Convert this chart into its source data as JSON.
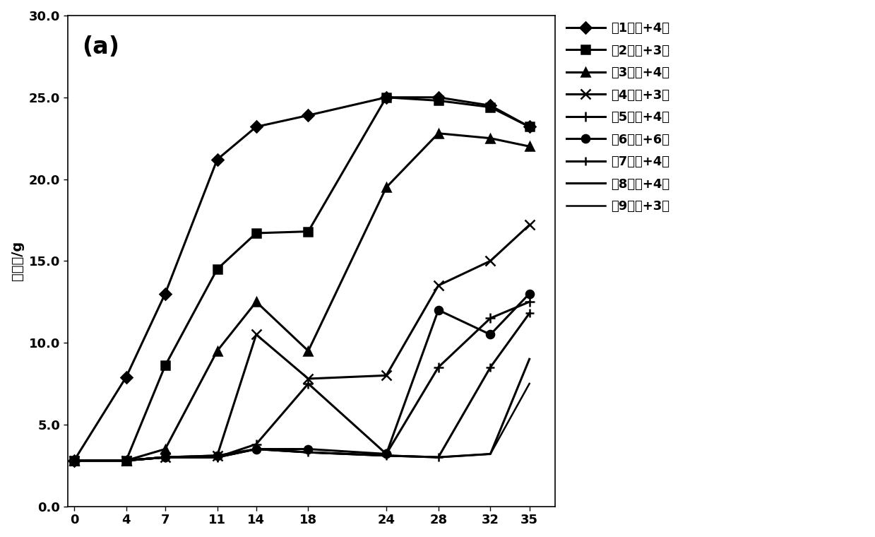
{
  "x": [
    0,
    4,
    7,
    11,
    14,
    18,
    24,
    28,
    32,
    35
  ],
  "series": [
    {
      "label": "第1批次+4天",
      "marker": "D",
      "markersize": 8,
      "linewidth": 2.2,
      "y": [
        2.8,
        7.9,
        13.0,
        21.2,
        23.2,
        23.9,
        25.0,
        25.0,
        24.5,
        23.2
      ]
    },
    {
      "label": "第2批次+3天",
      "marker": "s",
      "markersize": 9,
      "linewidth": 2.2,
      "y": [
        2.8,
        2.8,
        8.6,
        14.5,
        16.7,
        16.8,
        25.0,
        24.8,
        24.4,
        23.2
      ]
    },
    {
      "label": "第3批次+4天",
      "marker": "^",
      "markersize": 9,
      "linewidth": 2.2,
      "y": [
        2.8,
        2.8,
        3.5,
        9.5,
        12.5,
        9.5,
        19.5,
        22.8,
        22.5,
        22.0
      ]
    },
    {
      "label": "第4批次+3天",
      "marker": "x",
      "markersize": 10,
      "linewidth": 2.2,
      "y": [
        2.8,
        2.8,
        3.0,
        3.1,
        10.5,
        7.8,
        8.0,
        13.5,
        15.0,
        17.2
      ]
    },
    {
      "label": "第5批次+4天",
      "marker": "+",
      "markersize": 10,
      "linewidth": 2.2,
      "y": [
        2.8,
        2.8,
        3.0,
        3.0,
        3.8,
        7.5,
        3.2,
        8.5,
        11.5,
        12.5
      ]
    },
    {
      "label": "第6批次+6天",
      "marker": "o",
      "markersize": 8,
      "linewidth": 2.2,
      "y": [
        2.8,
        2.8,
        3.0,
        3.1,
        3.5,
        3.5,
        3.2,
        12.0,
        10.5,
        13.0
      ]
    },
    {
      "label": "第7批次+4天",
      "marker": "+",
      "markersize": 8,
      "linewidth": 2.2,
      "y": [
        2.8,
        2.8,
        3.0,
        3.0,
        3.5,
        3.3,
        3.1,
        3.0,
        8.5,
        11.8
      ]
    },
    {
      "label": "第8批次+4天",
      "marker": "None",
      "markersize": 0,
      "linewidth": 2.2,
      "y": [
        2.8,
        2.8,
        3.0,
        3.0,
        3.5,
        3.3,
        3.1,
        3.0,
        3.2,
        9.0
      ]
    },
    {
      "label": "第9批次+3天",
      "marker": "None",
      "markersize": 0,
      "linewidth": 1.8,
      "y": [
        2.8,
        2.8,
        3.0,
        3.0,
        3.5,
        3.3,
        3.1,
        3.0,
        3.2,
        7.5
      ]
    }
  ],
  "xlabel": "",
  "ylabel": "千粒重/g",
  "title_label": "(a)",
  "xlim": [
    -0.5,
    37
  ],
  "ylim": [
    0.0,
    30.0
  ],
  "xticks": [
    0,
    4,
    7,
    11,
    14,
    18,
    24,
    28,
    32,
    35
  ],
  "yticks": [
    0.0,
    5.0,
    10.0,
    15.0,
    20.0,
    25.0,
    30.0
  ],
  "background_color": "#ffffff",
  "line_color": "#000000"
}
